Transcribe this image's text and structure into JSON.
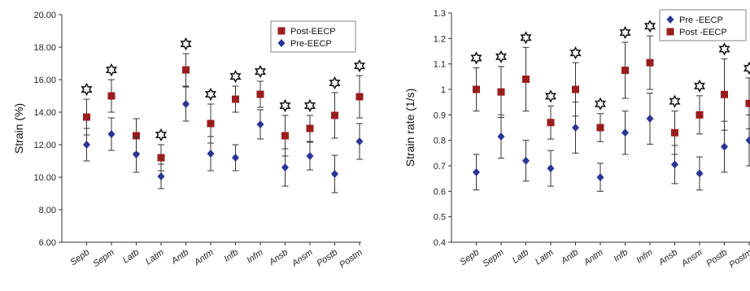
{
  "colors": {
    "post": "#9b1c1c",
    "pre": "#2a3594",
    "axis": "#333333",
    "star": "#111111"
  },
  "significance_marker_icon": "six-point-star-icon",
  "chart_data": [
    {
      "type": "scatter",
      "ylabel": "Strain (%)",
      "xlabel": "",
      "ylim": [
        6,
        20
      ],
      "yticks": [
        6,
        8,
        10,
        12,
        14,
        16,
        18,
        20
      ],
      "ytick_labels": [
        "6.00",
        "8.00",
        "10.00",
        "12.00",
        "14.00",
        "16.00",
        "18.00",
        "20.00"
      ],
      "grid": false,
      "legend_position": "top-right",
      "categories": [
        "Sepb",
        "Sepm",
        "Latb",
        "Latm",
        "Antb",
        "Antm",
        "Infb",
        "Infm",
        "Ansb",
        "Ansm",
        "Postb",
        "Postm"
      ],
      "series": [
        {
          "name": "Post-EECP",
          "marker": "square",
          "color": "#9b1c1c",
          "values": [
            13.7,
            15.0,
            12.55,
            11.2,
            16.6,
            13.3,
            14.8,
            15.1,
            12.55,
            13.0,
            13.8,
            14.95
          ],
          "error": [
            1.1,
            1.0,
            1.05,
            0.8,
            1.0,
            1.2,
            0.8,
            0.8,
            1.25,
            0.8,
            1.4,
            1.3
          ]
        },
        {
          "name": "Pre-EECP",
          "marker": "diamond",
          "color": "#2a3594",
          "values": [
            12.0,
            12.65,
            11.4,
            10.05,
            14.5,
            11.45,
            11.2,
            13.25,
            10.6,
            11.3,
            10.2,
            12.2
          ],
          "error": [
            1.0,
            1.0,
            1.1,
            0.75,
            1.05,
            1.05,
            0.8,
            0.9,
            1.15,
            0.85,
            1.15,
            1.1
          ]
        }
      ],
      "significant": [
        true,
        true,
        false,
        true,
        true,
        true,
        true,
        true,
        true,
        true,
        true,
        true
      ]
    },
    {
      "type": "scatter",
      "ylabel": "Strain rate (1/s)",
      "xlabel": "",
      "ylim": [
        0.4,
        1.3
      ],
      "yticks": [
        0.4,
        0.5,
        0.6,
        0.7,
        0.8,
        0.9,
        1.0,
        1.1,
        1.2,
        1.3
      ],
      "ytick_labels": [
        "0.4",
        "0.5",
        "0.6",
        "0.7",
        "0.8",
        "0.9",
        "1",
        "1.1",
        "1.2",
        "1.3"
      ],
      "grid": false,
      "legend_position": "top-right",
      "categories": [
        "Sepb",
        "Sepm",
        "Latb",
        "Latm",
        "Antb",
        "Antm",
        "Infb",
        "Infm",
        "Ansb",
        "Ansm",
        "Postb",
        "Postm"
      ],
      "series": [
        {
          "name": "Pre -EECP",
          "marker": "diamond",
          "color": "#2a3594",
          "values": [
            0.675,
            0.815,
            0.72,
            0.69,
            0.85,
            0.655,
            0.83,
            0.885,
            0.705,
            0.67,
            0.775,
            0.8
          ],
          "error": [
            0.07,
            0.085,
            0.08,
            0.07,
            0.1,
            0.055,
            0.085,
            0.1,
            0.075,
            0.065,
            0.1,
            0.1
          ]
        },
        {
          "name": "Post -EECP",
          "marker": "square",
          "color": "#9b1c1c",
          "values": [
            1.0,
            0.99,
            1.04,
            0.87,
            1.0,
            0.85,
            1.075,
            1.105,
            0.83,
            0.9,
            0.98,
            0.945
          ],
          "error": [
            0.085,
            0.1,
            0.125,
            0.065,
            0.105,
            0.055,
            0.11,
            0.105,
            0.085,
            0.075,
            0.14,
            0.1
          ]
        }
      ],
      "significant": [
        true,
        true,
        true,
        true,
        true,
        true,
        true,
        true,
        true,
        true,
        true,
        true
      ]
    }
  ]
}
